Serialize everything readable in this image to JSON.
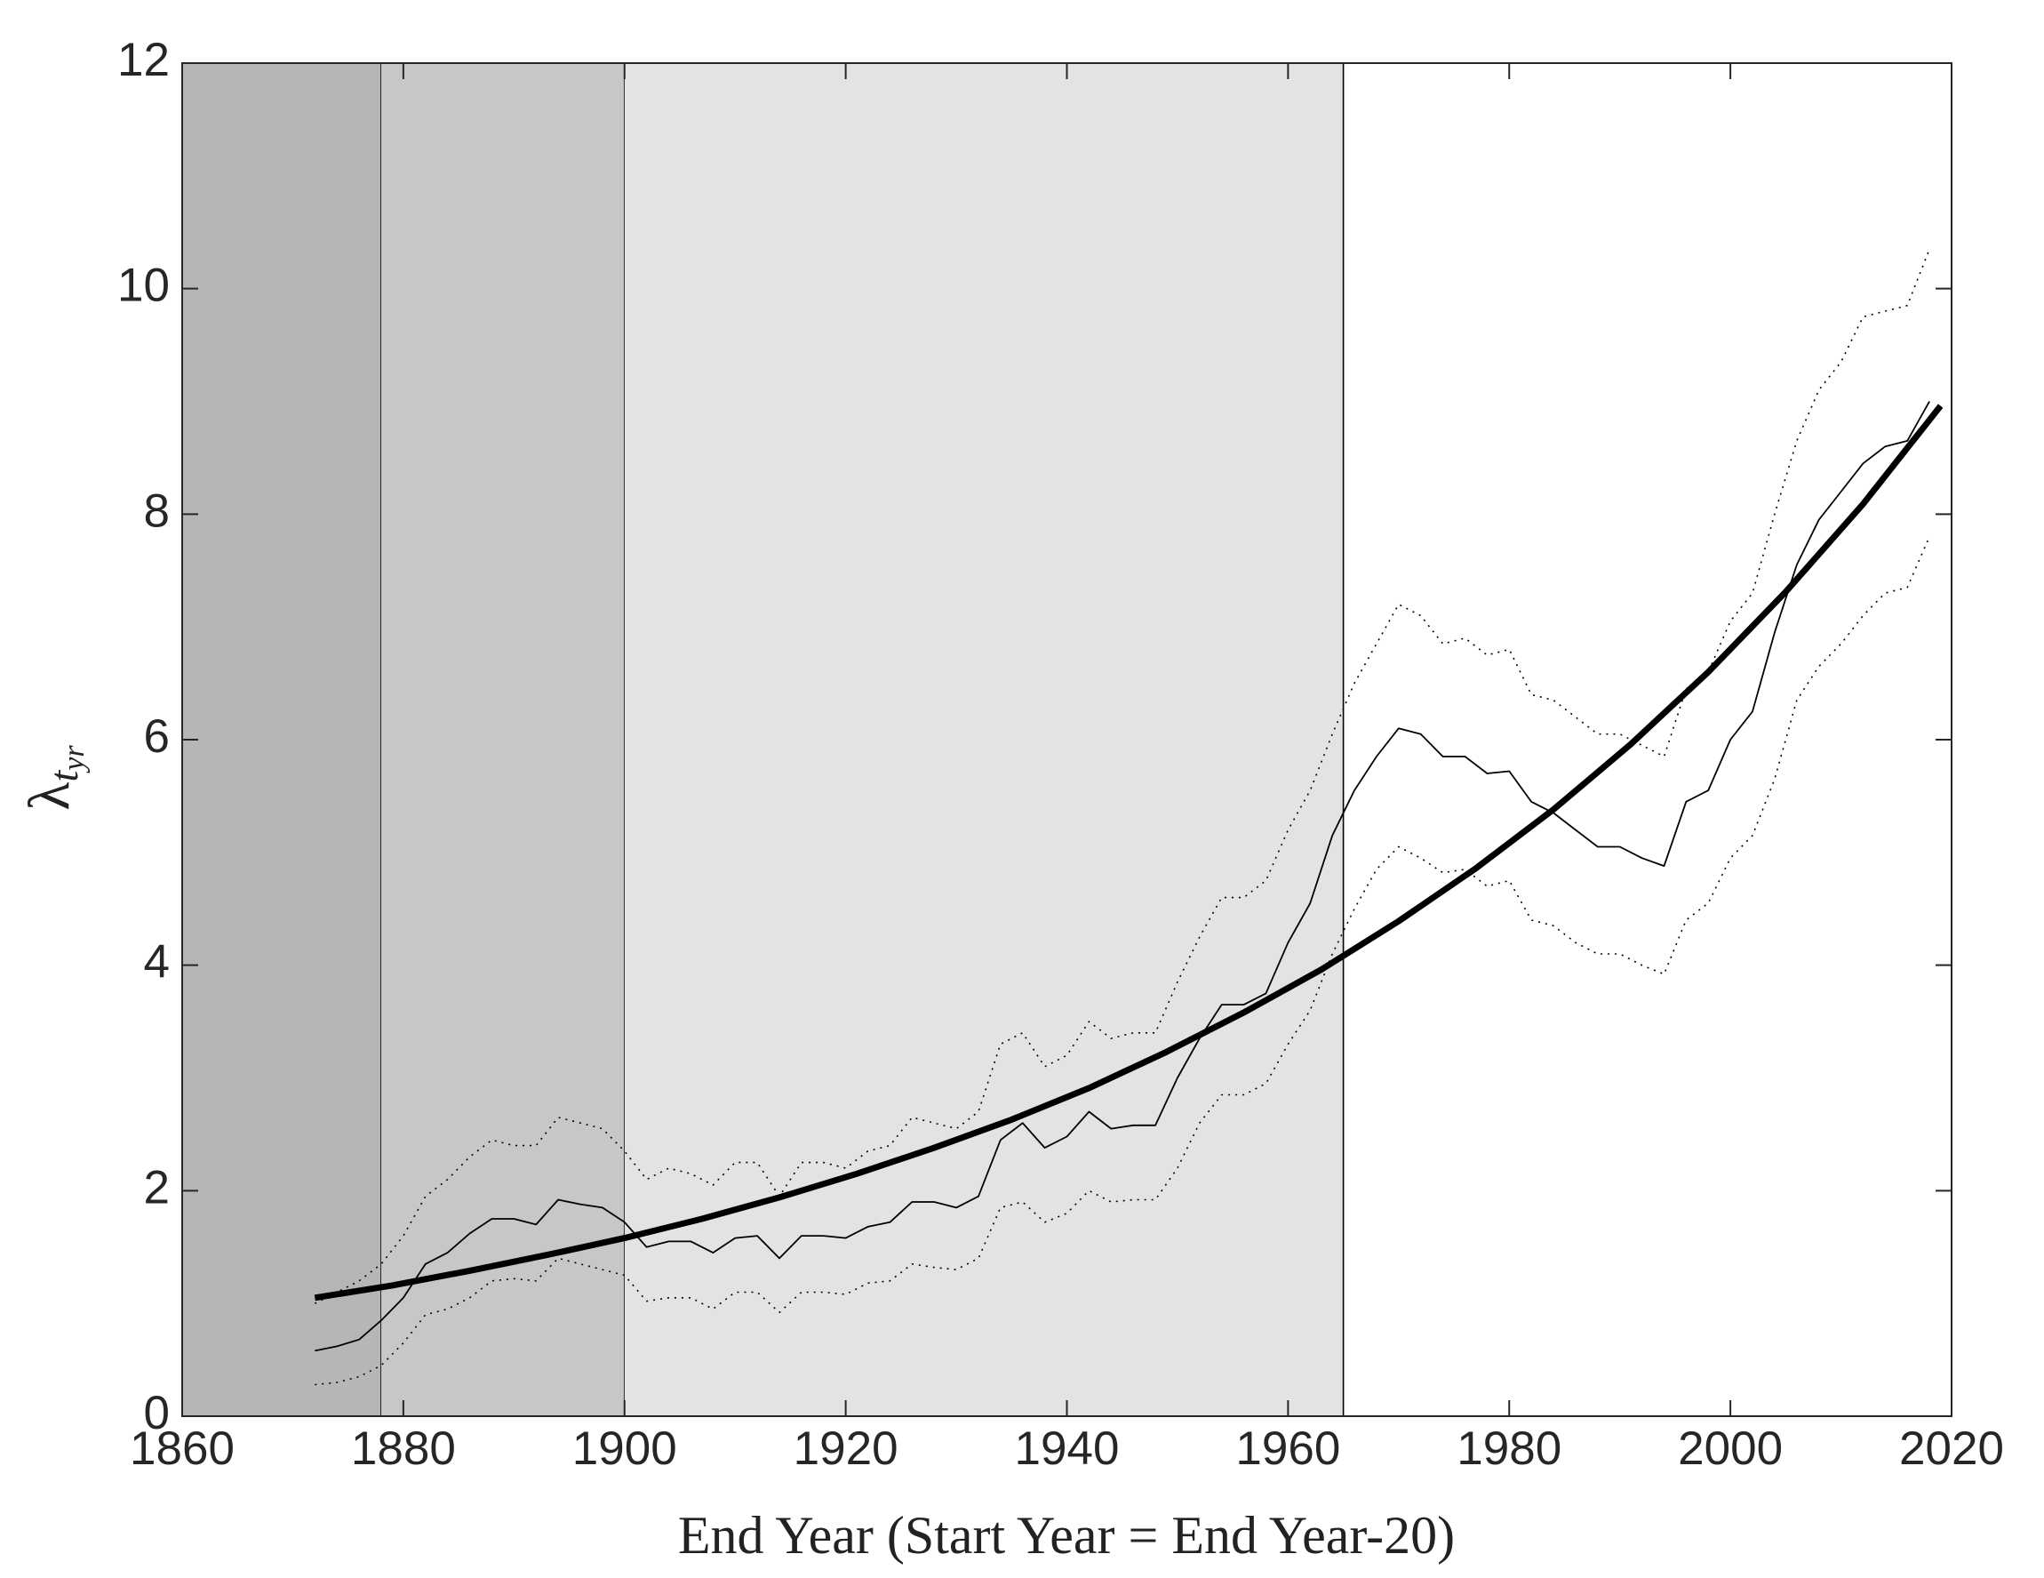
{
  "chart_data": {
    "type": "line",
    "xlabel": "End Year (Start Year = End Year-20)",
    "ylabel": "λ",
    "ylabel_sub": "t",
    "ylabel_subsub": "yr",
    "xlim": [
      1860,
      2020
    ],
    "ylim": [
      0,
      12
    ],
    "xticks": [
      1860,
      1880,
      1900,
      1920,
      1940,
      1960,
      1980,
      2000,
      2020
    ],
    "yticks": [
      0,
      2,
      4,
      6,
      8,
      10,
      12
    ],
    "shaded_regions": [
      {
        "start": 1860,
        "end": 1878,
        "color": "#b6b6b6"
      },
      {
        "start": 1878,
        "end": 1900,
        "color": "#c8c7c8"
      },
      {
        "start": 1900,
        "end": 1965,
        "color": "#e4e3e2"
      }
    ],
    "series": [
      {
        "color": "#000000",
        "width": 1.6,
        "dash": "dotted",
        "x": [
          1872,
          1874,
          1876,
          1878,
          1880,
          1882,
          1884,
          1886,
          1888,
          1890,
          1892,
          1894,
          1896,
          1898,
          1900,
          1902,
          1904,
          1906,
          1908,
          1910,
          1912,
          1914,
          1916,
          1918,
          1920,
          1922,
          1924,
          1926,
          1928,
          1930,
          1932,
          1934,
          1936,
          1938,
          1940,
          1942,
          1944,
          1946,
          1948,
          1950,
          1952,
          1954,
          1956,
          1958,
          1960,
          1962,
          1964,
          1966,
          1968,
          1970,
          1972,
          1974,
          1976,
          1978,
          1980,
          1982,
          1984,
          1986,
          1988,
          1990,
          1992,
          1994,
          1996,
          1998,
          2000,
          2002,
          2004,
          2006,
          2008,
          2010,
          2012,
          2014,
          2016,
          2018
        ],
        "values": [
          1.0,
          1.1,
          1.2,
          1.35,
          1.6,
          1.95,
          2.1,
          2.3,
          2.45,
          2.4,
          2.4,
          2.65,
          2.6,
          2.55,
          2.35,
          2.1,
          2.2,
          2.15,
          2.05,
          2.25,
          2.25,
          1.95,
          2.25,
          2.25,
          2.2,
          2.35,
          2.4,
          2.65,
          2.6,
          2.55,
          2.7,
          3.3,
          3.4,
          3.1,
          3.2,
          3.5,
          3.35,
          3.4,
          3.4,
          3.85,
          4.25,
          4.6,
          4.6,
          4.75,
          5.2,
          5.55,
          6.05,
          6.5,
          6.85,
          7.2,
          7.1,
          6.85,
          6.9,
          6.75,
          6.8,
          6.4,
          6.35,
          6.2,
          6.05,
          6.05,
          5.95,
          5.85,
          6.45,
          6.6,
          7.05,
          7.3,
          8.0,
          8.65,
          9.1,
          9.35,
          9.75,
          9.8,
          9.85,
          10.35
        ]
      },
      {
        "color": "#000000",
        "width": 1.6,
        "dash": "dotted",
        "x": [
          1872,
          1874,
          1876,
          1878,
          1880,
          1882,
          1884,
          1886,
          1888,
          1890,
          1892,
          1894,
          1896,
          1898,
          1900,
          1902,
          1904,
          1906,
          1908,
          1910,
          1912,
          1914,
          1916,
          1918,
          1920,
          1922,
          1924,
          1926,
          1928,
          1930,
          1932,
          1934,
          1936,
          1938,
          1940,
          1942,
          1944,
          1946,
          1948,
          1950,
          1952,
          1954,
          1956,
          1958,
          1960,
          1962,
          1964,
          1966,
          1968,
          1970,
          1972,
          1974,
          1976,
          1978,
          1980,
          1982,
          1984,
          1986,
          1988,
          1990,
          1992,
          1994,
          1996,
          1998,
          2000,
          2002,
          2004,
          2006,
          2008,
          2010,
          2012,
          2014,
          2016,
          2018
        ],
        "values": [
          0.28,
          0.3,
          0.35,
          0.45,
          0.65,
          0.9,
          0.95,
          1.05,
          1.2,
          1.22,
          1.2,
          1.4,
          1.35,
          1.3,
          1.25,
          1.02,
          1.05,
          1.05,
          0.95,
          1.1,
          1.1,
          0.92,
          1.1,
          1.1,
          1.08,
          1.18,
          1.2,
          1.35,
          1.32,
          1.3,
          1.4,
          1.85,
          1.9,
          1.72,
          1.8,
          2.0,
          1.9,
          1.92,
          1.92,
          2.2,
          2.6,
          2.85,
          2.85,
          2.95,
          3.3,
          3.6,
          4.1,
          4.5,
          4.85,
          5.05,
          4.95,
          4.82,
          4.85,
          4.7,
          4.75,
          4.4,
          4.35,
          4.2,
          4.1,
          4.1,
          4.0,
          3.92,
          4.4,
          4.55,
          4.95,
          5.15,
          5.65,
          6.35,
          6.65,
          6.85,
          7.1,
          7.3,
          7.35,
          7.8
        ]
      },
      {
        "color": "#000000",
        "width": 1.8,
        "dash": "solid",
        "x": [
          1872,
          1874,
          1876,
          1878,
          1880,
          1882,
          1884,
          1886,
          1888,
          1890,
          1892,
          1894,
          1896,
          1898,
          1900,
          1902,
          1904,
          1906,
          1908,
          1910,
          1912,
          1914,
          1916,
          1918,
          1920,
          1922,
          1924,
          1926,
          1928,
          1930,
          1932,
          1934,
          1936,
          1938,
          1940,
          1942,
          1944,
          1946,
          1948,
          1950,
          1952,
          1954,
          1956,
          1958,
          1960,
          1962,
          1964,
          1966,
          1968,
          1970,
          1972,
          1974,
          1976,
          1978,
          1980,
          1982,
          1984,
          1986,
          1988,
          1990,
          1992,
          1994,
          1996,
          1998,
          2000,
          2002,
          2004,
          2006,
          2008,
          2010,
          2012,
          2014,
          2016,
          2018
        ],
        "values": [
          0.58,
          0.62,
          0.68,
          0.85,
          1.05,
          1.35,
          1.45,
          1.62,
          1.75,
          1.75,
          1.7,
          1.92,
          1.88,
          1.85,
          1.72,
          1.5,
          1.55,
          1.55,
          1.45,
          1.58,
          1.6,
          1.4,
          1.6,
          1.6,
          1.58,
          1.68,
          1.72,
          1.9,
          1.9,
          1.85,
          1.95,
          2.45,
          2.6,
          2.38,
          2.48,
          2.7,
          2.55,
          2.58,
          2.58,
          3.0,
          3.35,
          3.65,
          3.65,
          3.75,
          4.2,
          4.55,
          5.15,
          5.55,
          5.85,
          6.1,
          6.05,
          5.85,
          5.85,
          5.7,
          5.72,
          5.45,
          5.35,
          5.2,
          5.05,
          5.05,
          4.95,
          4.88,
          5.45,
          5.55,
          6.0,
          6.25,
          6.95,
          7.55,
          7.95,
          8.2,
          8.45,
          8.6,
          8.65,
          9.0
        ]
      },
      {
        "color": "#000000",
        "width": 7,
        "dash": "solid",
        "x": [
          1872,
          1879,
          1886,
          1893,
          1900,
          1907,
          1914,
          1921,
          1928,
          1935,
          1942,
          1949,
          1956,
          1963,
          1970,
          1977,
          1984,
          1991,
          1998,
          2005,
          2012,
          2019
        ],
        "values": [
          1.05,
          1.16,
          1.29,
          1.43,
          1.58,
          1.75,
          1.94,
          2.15,
          2.38,
          2.63,
          2.91,
          3.23,
          3.58,
          3.96,
          4.39,
          4.86,
          5.38,
          5.96,
          6.6,
          7.31,
          8.09,
          8.96
        ]
      }
    ]
  }
}
